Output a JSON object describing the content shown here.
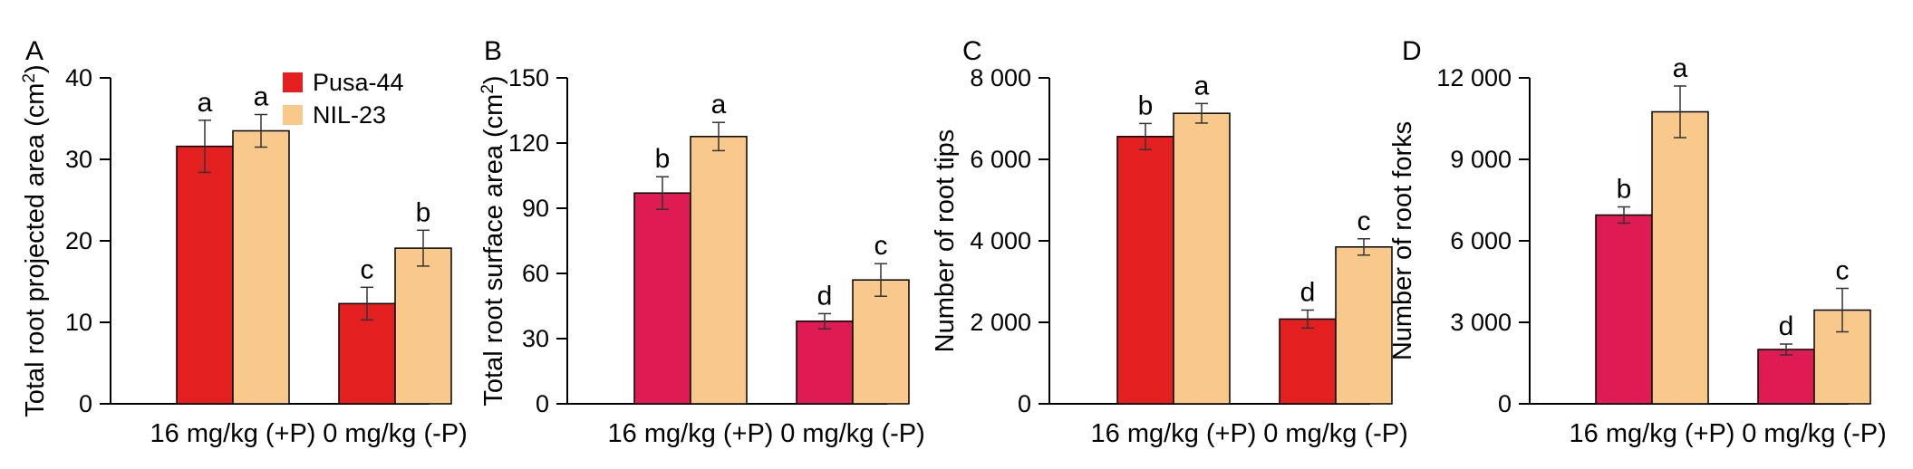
{
  "colors": {
    "pusa_red": "#e3201f",
    "pusa_pink": "#df1b53",
    "nil": "#f8c98b",
    "axis": "#000000",
    "error": "#333333"
  },
  "legend": {
    "items": [
      {
        "label": "Pusa-44",
        "color": "#e3201f"
      },
      {
        "label": "NIL-23",
        "color": "#f8c98b"
      }
    ]
  },
  "chart_data": [
    {
      "type": "bar",
      "panel": "A",
      "ylabel_main": "Total root projected area (cm",
      "ylabel_sup": "2",
      "ylabel_end": ")",
      "categories": [
        "16 mg/kg (+P)",
        "0 mg/kg (-P)"
      ],
      "ylim": [
        0,
        40
      ],
      "yticks": [
        0,
        10,
        20,
        30,
        40
      ],
      "ytick_labels": [
        "0",
        "10",
        "20",
        "30",
        "40"
      ],
      "series": [
        {
          "name": "Pusa-44",
          "color": "#e3201f",
          "values": [
            31.6,
            12.3
          ],
          "errors": [
            3.2,
            2.0
          ],
          "letters": [
            "a",
            "c"
          ]
        },
        {
          "name": "NIL-23",
          "color": "#f8c98b",
          "values": [
            33.5,
            19.1
          ],
          "errors": [
            2.0,
            2.2
          ],
          "letters": [
            "a",
            "b"
          ]
        }
      ]
    },
    {
      "type": "bar",
      "panel": "B",
      "ylabel_main": "Total root surface area (cm",
      "ylabel_sup": "2",
      "ylabel_end": ")",
      "categories": [
        "16 mg/kg (+P)",
        "0 mg/kg (-P)"
      ],
      "ylim": [
        0,
        150
      ],
      "yticks": [
        0,
        30,
        60,
        90,
        120,
        150
      ],
      "ytick_labels": [
        "0",
        "30",
        "60",
        "90",
        "120",
        "150"
      ],
      "series": [
        {
          "name": "Pusa-44",
          "color": "#df1b53",
          "values": [
            97,
            38
          ],
          "errors": [
            7.5,
            3.5
          ],
          "letters": [
            "b",
            "d"
          ]
        },
        {
          "name": "NIL-23",
          "color": "#f8c98b",
          "values": [
            123,
            57
          ],
          "errors": [
            6.5,
            7.5
          ],
          "letters": [
            "a",
            "c"
          ]
        }
      ]
    },
    {
      "type": "bar",
      "panel": "C",
      "ylabel_main": "Number of root tips",
      "ylabel_sup": "",
      "ylabel_end": "",
      "categories": [
        "16 mg/kg (+P)",
        "0 mg/kg (-P)"
      ],
      "ylim": [
        0,
        8000
      ],
      "yticks": [
        0,
        2000,
        4000,
        6000,
        8000
      ],
      "ytick_labels": [
        "0",
        "2 000",
        "4 000",
        "6 000",
        "8 000"
      ],
      "series": [
        {
          "name": "Pusa-44",
          "color": "#e3201f",
          "values": [
            6560,
            2080
          ],
          "errors": [
            320,
            220
          ],
          "letters": [
            "b",
            "d"
          ]
        },
        {
          "name": "NIL-23",
          "color": "#f8c98b",
          "values": [
            7130,
            3850
          ],
          "errors": [
            240,
            200
          ],
          "letters": [
            "a",
            "c"
          ]
        }
      ]
    },
    {
      "type": "bar",
      "panel": "D",
      "ylabel_main": "Number of root forks",
      "ylabel_sup": "",
      "ylabel_end": "",
      "categories": [
        "16 mg/kg (+P)",
        "0 mg/kg (-P)"
      ],
      "ylim": [
        0,
        12000
      ],
      "yticks": [
        0,
        3000,
        6000,
        9000,
        12000
      ],
      "ytick_labels": [
        "0",
        "3 000",
        "6 000",
        "9 000",
        "12 000"
      ],
      "series": [
        {
          "name": "Pusa-44",
          "color": "#df1b53",
          "values": [
            6950,
            2000
          ],
          "errors": [
            300,
            200
          ],
          "letters": [
            "b",
            "d"
          ]
        },
        {
          "name": "NIL-23",
          "color": "#f8c98b",
          "values": [
            10750,
            3450
          ],
          "errors": [
            950,
            800
          ],
          "letters": [
            "a",
            "c"
          ]
        }
      ]
    }
  ]
}
